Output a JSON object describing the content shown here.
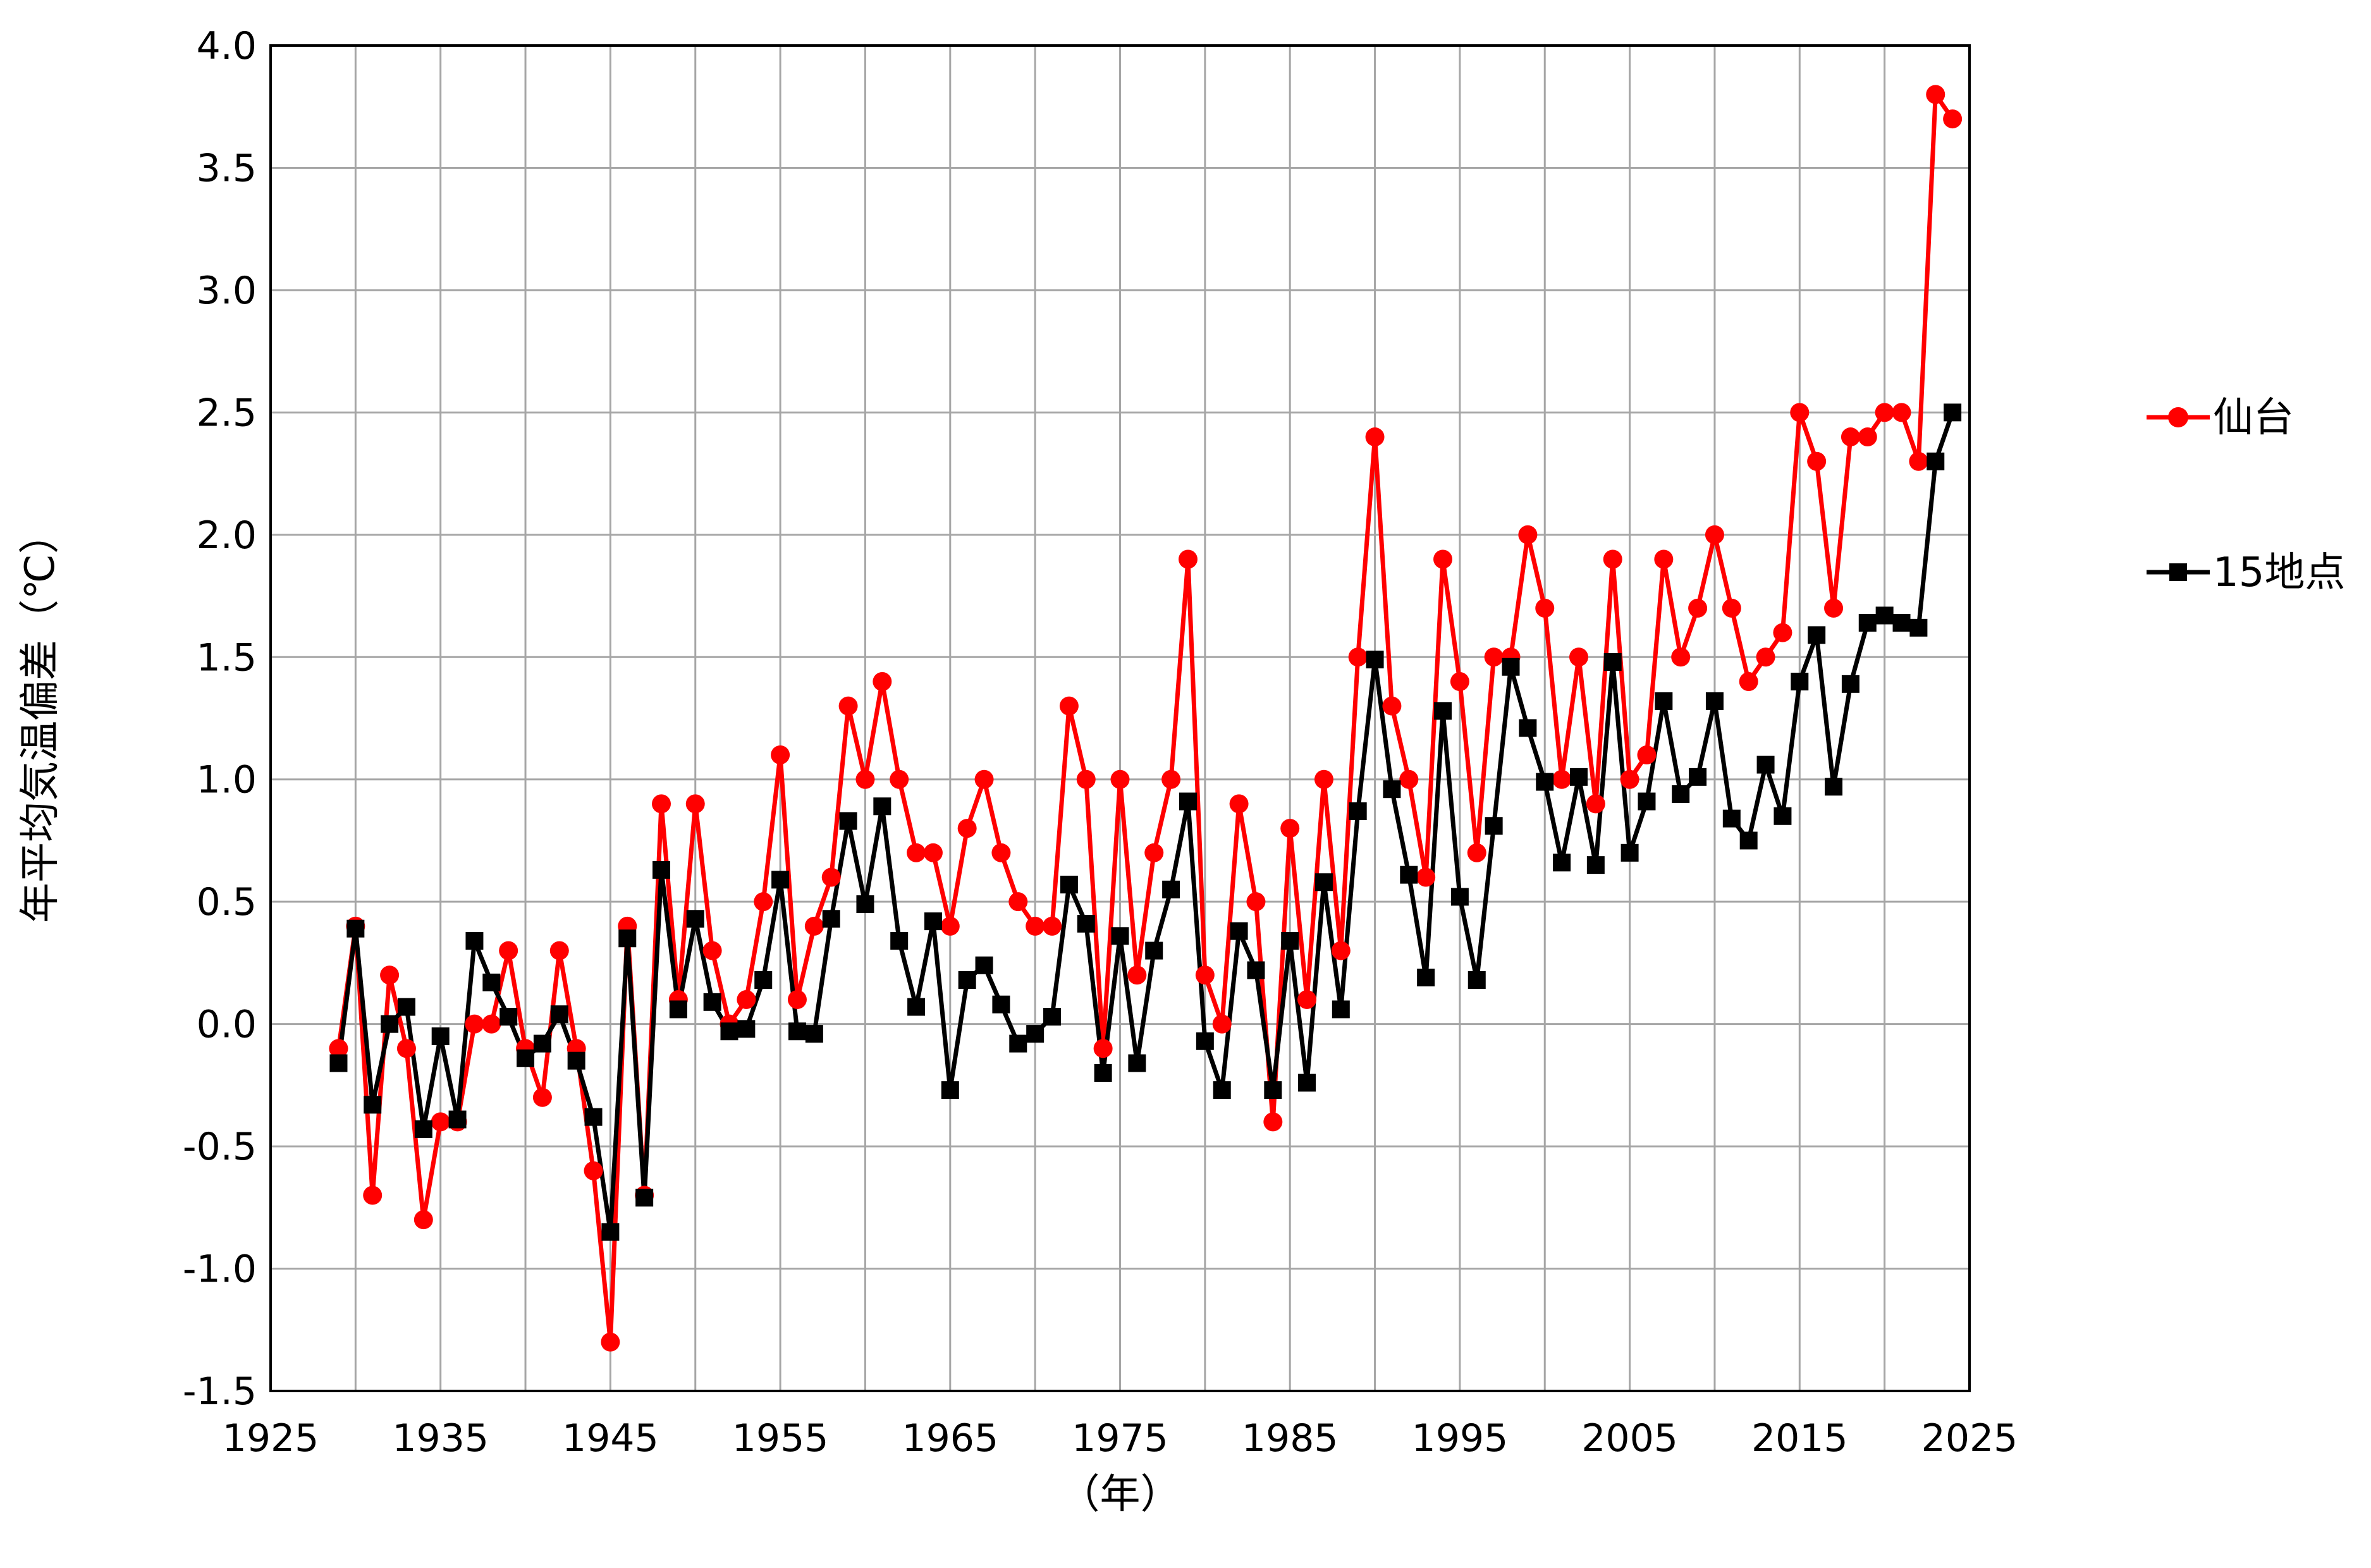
{
  "chart_data": {
    "type": "line",
    "title": "",
    "xlabel": "（年）",
    "ylabel": "年平均気温偏差（℃）",
    "xlim": [
      1925,
      2025
    ],
    "ylim": [
      -1.5,
      4.0
    ],
    "grid": true,
    "legend_position": "right",
    "x_ticks": [
      "1925",
      "1935",
      "1945",
      "1955",
      "1965",
      "1975",
      "1985",
      "1995",
      "2005",
      "2015",
      "2025"
    ],
    "y_ticks": [
      "4.0",
      "3.5",
      "3.0",
      "2.5",
      "2.0",
      "1.5",
      "1.0",
      "0.5",
      "0.0",
      "-0.5",
      "-1.0",
      "-1.5"
    ],
    "series": [
      {
        "name": "仙台",
        "color": "#ff0000",
        "marker": "circle",
        "start_year": 1929,
        "values": [
          -0.1,
          0.4,
          -0.7,
          0.2,
          -0.1,
          -0.8,
          -0.4,
          -0.4,
          0.0,
          0.0,
          0.3,
          -0.1,
          -0.3,
          0.3,
          -0.1,
          -0.6,
          -1.3,
          0.4,
          -0.7,
          0.9,
          0.1,
          0.9,
          0.3,
          0.0,
          0.1,
          0.5,
          1.1,
          0.1,
          0.4,
          0.6,
          1.3,
          1.0,
          1.4,
          1.0,
          0.7,
          0.7,
          0.4,
          0.8,
          1.0,
          0.7,
          0.5,
          0.4,
          0.4,
          1.3,
          1.0,
          -0.1,
          1.0,
          0.2,
          0.7,
          1.0,
          1.9,
          0.2,
          0.0,
          0.9,
          0.5,
          -0.4,
          0.8,
          0.1,
          1.0,
          0.3,
          1.5,
          2.4,
          1.3,
          1.0,
          0.6,
          1.9,
          1.4,
          0.7,
          1.5,
          1.5,
          2.0,
          1.7,
          1.0,
          1.5,
          0.9,
          1.9,
          1.0,
          1.1,
          1.9,
          1.5,
          1.7,
          2.0,
          1.7,
          1.4,
          1.5,
          1.6,
          2.5,
          2.3,
          1.7,
          2.4,
          2.4,
          2.5,
          2.5,
          2.3,
          3.8,
          3.7
        ]
      },
      {
        "name": "15地点",
        "color": "#000000",
        "marker": "square",
        "start_year": 1929,
        "values": [
          -0.16,
          0.39,
          -0.33,
          0.0,
          0.07,
          -0.43,
          -0.05,
          -0.39,
          0.34,
          0.17,
          0.03,
          -0.14,
          -0.08,
          0.04,
          -0.15,
          -0.38,
          -0.85,
          0.35,
          -0.71,
          0.63,
          0.06,
          0.43,
          0.09,
          -0.03,
          -0.02,
          0.18,
          0.59,
          -0.03,
          -0.04,
          0.43,
          0.83,
          0.49,
          0.89,
          0.34,
          0.07,
          0.42,
          -0.27,
          0.18,
          0.24,
          0.08,
          -0.08,
          -0.04,
          0.03,
          0.57,
          0.41,
          -0.2,
          0.36,
          -0.16,
          0.3,
          0.55,
          0.91,
          -0.07,
          -0.27,
          0.38,
          0.22,
          -0.27,
          0.34,
          -0.24,
          0.58,
          0.06,
          0.87,
          1.49,
          0.96,
          0.61,
          0.19,
          1.28,
          0.52,
          0.18,
          0.81,
          1.46,
          1.21,
          0.99,
          0.66,
          1.01,
          0.65,
          1.48,
          0.7,
          0.91,
          1.32,
          0.94,
          1.01,
          1.32,
          0.84,
          0.75,
          1.06,
          0.85,
          1.4,
          1.59,
          0.97,
          1.39,
          1.64,
          1.67,
          1.64,
          1.62,
          2.3,
          2.5
        ]
      }
    ]
  }
}
